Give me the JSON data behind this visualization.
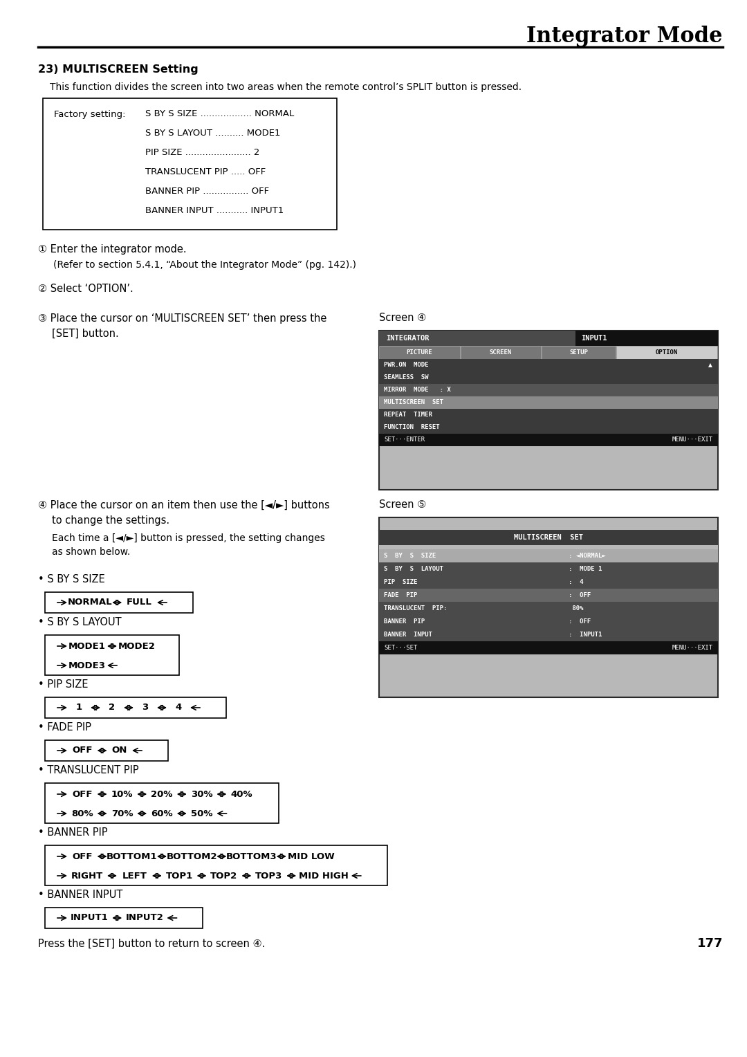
{
  "title": "Integrator Mode",
  "section_num": "23)",
  "section_title": "MULTISCREEN Setting",
  "intro_text": "This function divides the screen into two areas when the remote control’s SPLIT button is pressed.",
  "factory_label": "Factory setting:",
  "factory_lines": [
    [
      "S BY S SIZE .................. NORMAL",
      true
    ],
    [
      "S BY S LAYOUT .......... MODE1",
      false
    ],
    [
      "PIP SIZE ....................... 2",
      false
    ],
    [
      "TRANSLUCENT PIP ..... OFF",
      false
    ],
    [
      "BANNER PIP ................ OFF",
      false
    ],
    [
      "BANNER INPUT ........... INPUT1",
      false
    ]
  ],
  "step1_circle": "①",
  "step1_text": "Enter the integrator mode.",
  "step1_sub": "(Refer to section 5.4.1, “About the Integrator Mode” (pg. 142).)",
  "step2_circle": "②",
  "step2_text": "Select ‘OPTION’.",
  "step3_circle": "③",
  "step3_line1": "Place the cursor on ‘MULTISCREEN SET’ then press the",
  "step3_line2": "[SET] button.",
  "screen3_label": "Screen ④",
  "step4_circle": "④",
  "step4_line1": "Place the cursor on an item then use the [◄/►] buttons",
  "step4_line2": "to change the settings.",
  "step4_line3": "Each time a [◄/►] button is pressed, the setting changes",
  "step4_line4": "as shown below.",
  "screen4_label": "Screen ⑤",
  "footer_text": "Press the [SET] button to return to screen ④.",
  "page_number": "177",
  "flow_sections": [
    {
      "bullet": "• S BY S SIZE",
      "rows": [
        {
          "boxes": [
            "NORMAL",
            "FULL"
          ],
          "loop": true,
          "second_row": false
        }
      ]
    },
    {
      "bullet": "• S BY S LAYOUT",
      "rows": [
        {
          "boxes": [
            "MODE1",
            "MODE2"
          ],
          "loop": false,
          "second_row": false
        },
        {
          "boxes": [
            "MODE3"
          ],
          "loop": true,
          "second_row": true
        }
      ]
    },
    {
      "bullet": "• PIP SIZE",
      "rows": [
        {
          "boxes": [
            "1",
            "2",
            "3",
            "4"
          ],
          "loop": true,
          "second_row": false
        }
      ]
    },
    {
      "bullet": "• FADE PIP",
      "rows": [
        {
          "boxes": [
            "OFF",
            "ON"
          ],
          "loop": true,
          "second_row": false
        }
      ]
    },
    {
      "bullet": "• TRANSLUCENT PIP",
      "rows": [
        {
          "boxes": [
            "OFF",
            "10%",
            "20%",
            "30%",
            "40%"
          ],
          "loop": false,
          "second_row": false
        },
        {
          "boxes": [
            "80%",
            "70%",
            "60%",
            "50%"
          ],
          "loop": true,
          "second_row": true
        }
      ]
    },
    {
      "bullet": "• BANNER PIP",
      "rows": [
        {
          "boxes": [
            "OFF",
            "BOTTOM1",
            "BOTTOM2",
            "BOTTOM3",
            "MID LOW"
          ],
          "loop": false,
          "second_row": false
        },
        {
          "boxes": [
            "RIGHT",
            "LEFT",
            "TOP1",
            "TOP2",
            "TOP3",
            "MID HIGH"
          ],
          "loop": true,
          "second_row": true
        }
      ]
    },
    {
      "bullet": "• BANNER INPUT",
      "rows": [
        {
          "boxes": [
            "INPUT1",
            "INPUT2"
          ],
          "loop": true,
          "second_row": false
        }
      ]
    }
  ]
}
